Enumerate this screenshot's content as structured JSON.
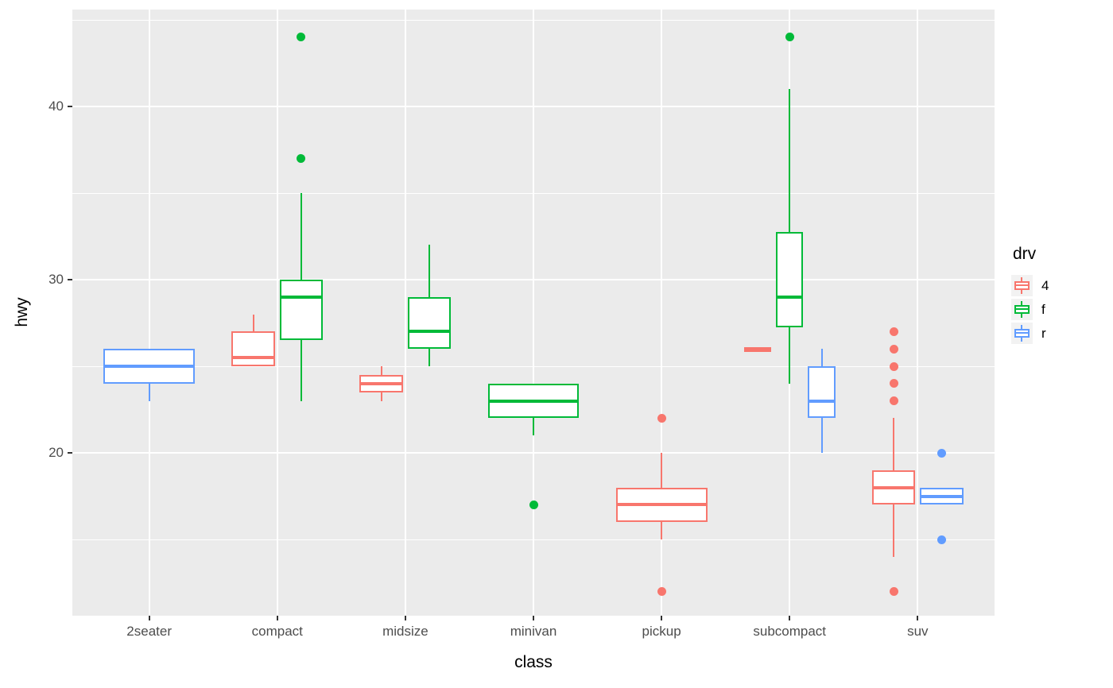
{
  "chart_data": {
    "type": "boxplot",
    "xlabel": "class",
    "ylabel": "hwy",
    "categories": [
      "2seater",
      "compact",
      "midsize",
      "minivan",
      "pickup",
      "subcompact",
      "suv"
    ],
    "y_ticks": [
      20,
      30,
      40
    ],
    "y_minor_ticks": [
      15,
      25,
      35,
      45
    ],
    "ylim": [
      10.6,
      45.6
    ],
    "grid": true,
    "legend": {
      "title": "drv",
      "position": "right",
      "entries": [
        {
          "label": "4",
          "color": "#F8766D"
        },
        {
          "label": "f",
          "color": "#00BA38"
        },
        {
          "label": "r",
          "color": "#619CFF"
        }
      ]
    },
    "series": [
      {
        "class": "2seater",
        "drv": "r",
        "min": 23,
        "q1": 24,
        "median": 25,
        "q3": 26,
        "max": 26,
        "outliers": []
      },
      {
        "class": "compact",
        "drv": "4",
        "min": 25,
        "q1": 25,
        "median": 25.5,
        "q3": 27,
        "max": 28,
        "outliers": []
      },
      {
        "class": "compact",
        "drv": "f",
        "min": 23,
        "q1": 26.5,
        "median": 29,
        "q3": 30,
        "max": 35,
        "outliers": [
          37,
          44
        ]
      },
      {
        "class": "midsize",
        "drv": "4",
        "min": 23,
        "q1": 23.5,
        "median": 24,
        "q3": 24.5,
        "max": 25,
        "outliers": []
      },
      {
        "class": "midsize",
        "drv": "f",
        "min": 25,
        "q1": 26,
        "median": 27,
        "q3": 29,
        "max": 32,
        "outliers": []
      },
      {
        "class": "minivan",
        "drv": "f",
        "min": 21,
        "q1": 22,
        "median": 23,
        "q3": 24,
        "max": 24,
        "outliers": [
          17
        ]
      },
      {
        "class": "pickup",
        "drv": "4",
        "min": 15,
        "q1": 16,
        "median": 17,
        "q3": 18,
        "max": 20,
        "outliers": [
          12,
          22
        ]
      },
      {
        "class": "subcompact",
        "drv": "4",
        "min": 26,
        "q1": 26,
        "median": 26,
        "q3": 26,
        "max": 26,
        "outliers": []
      },
      {
        "class": "subcompact",
        "drv": "f",
        "min": 24,
        "q1": 27.25,
        "median": 29,
        "q3": 32.75,
        "max": 41,
        "outliers": [
          44
        ]
      },
      {
        "class": "subcompact",
        "drv": "r",
        "min": 20,
        "q1": 22,
        "median": 23,
        "q3": 25,
        "max": 26,
        "outliers": []
      },
      {
        "class": "suv",
        "drv": "4",
        "min": 14,
        "q1": 17,
        "median": 18,
        "q3": 19,
        "max": 22,
        "outliers": [
          12,
          23,
          24,
          25,
          26,
          27
        ]
      },
      {
        "class": "suv",
        "drv": "r",
        "min": 17,
        "q1": 17,
        "median": 17.5,
        "q3": 18,
        "max": 18,
        "outliers": [
          15,
          20
        ]
      }
    ]
  },
  "style": {
    "panel_bg": "#EBEBEB",
    "grid_color": "#FFFFFF",
    "axis_text_color": "#4D4D4D",
    "tick_mark_color": "#333333",
    "legend_key_bg": "#F2F2F2"
  }
}
